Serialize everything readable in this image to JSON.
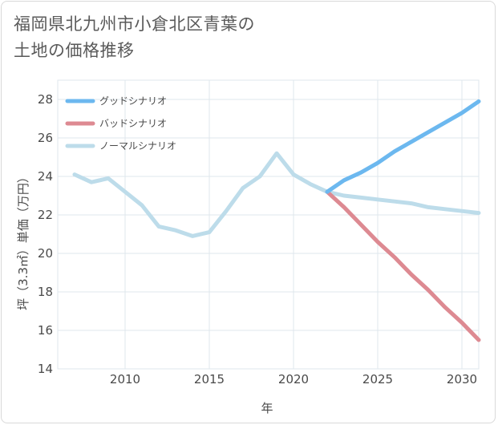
{
  "title_line1": "福岡県北九州市小倉北区青葉の",
  "title_line2": "土地の価格推移",
  "chart_data": {
    "type": "line",
    "xlabel": "年",
    "ylabel": "坪（3.3㎡）単価（万円）",
    "xlim": [
      2006,
      2031
    ],
    "ylim": [
      14,
      29
    ],
    "xticks": [
      2010,
      2015,
      2020,
      2025,
      2030
    ],
    "yticks": [
      14,
      16,
      18,
      20,
      22,
      24,
      26,
      28
    ],
    "grid": true,
    "legend_position": "top-left",
    "series": [
      {
        "name": "グッドシナリオ",
        "color": "#6cb8ef",
        "x": [
          2022,
          2023,
          2024,
          2025,
          2026,
          2027,
          2028,
          2029,
          2030,
          2031
        ],
        "y": [
          23.2,
          23.8,
          24.2,
          24.7,
          25.3,
          25.8,
          26.3,
          26.8,
          27.3,
          27.9
        ]
      },
      {
        "name": "バッドシナリオ",
        "color": "#dd8a92",
        "x": [
          2022,
          2023,
          2024,
          2025,
          2026,
          2027,
          2028,
          2029,
          2030,
          2031
        ],
        "y": [
          23.2,
          22.4,
          21.5,
          20.6,
          19.8,
          18.9,
          18.1,
          17.2,
          16.4,
          15.5
        ]
      },
      {
        "name": "ノーマルシナリオ",
        "color": "#bddcea",
        "x": [
          2007,
          2008,
          2009,
          2010,
          2011,
          2012,
          2013,
          2014,
          2015,
          2016,
          2017,
          2018,
          2019,
          2020,
          2021,
          2022,
          2023,
          2024,
          2025,
          2026,
          2027,
          2028,
          2029,
          2030,
          2031
        ],
        "y": [
          24.1,
          23.7,
          23.9,
          23.2,
          22.5,
          21.4,
          21.2,
          20.9,
          21.1,
          22.2,
          23.4,
          24.0,
          25.2,
          24.1,
          23.6,
          23.2,
          23.0,
          22.9,
          22.8,
          22.7,
          22.6,
          22.4,
          22.3,
          22.2,
          22.1
        ]
      }
    ]
  }
}
